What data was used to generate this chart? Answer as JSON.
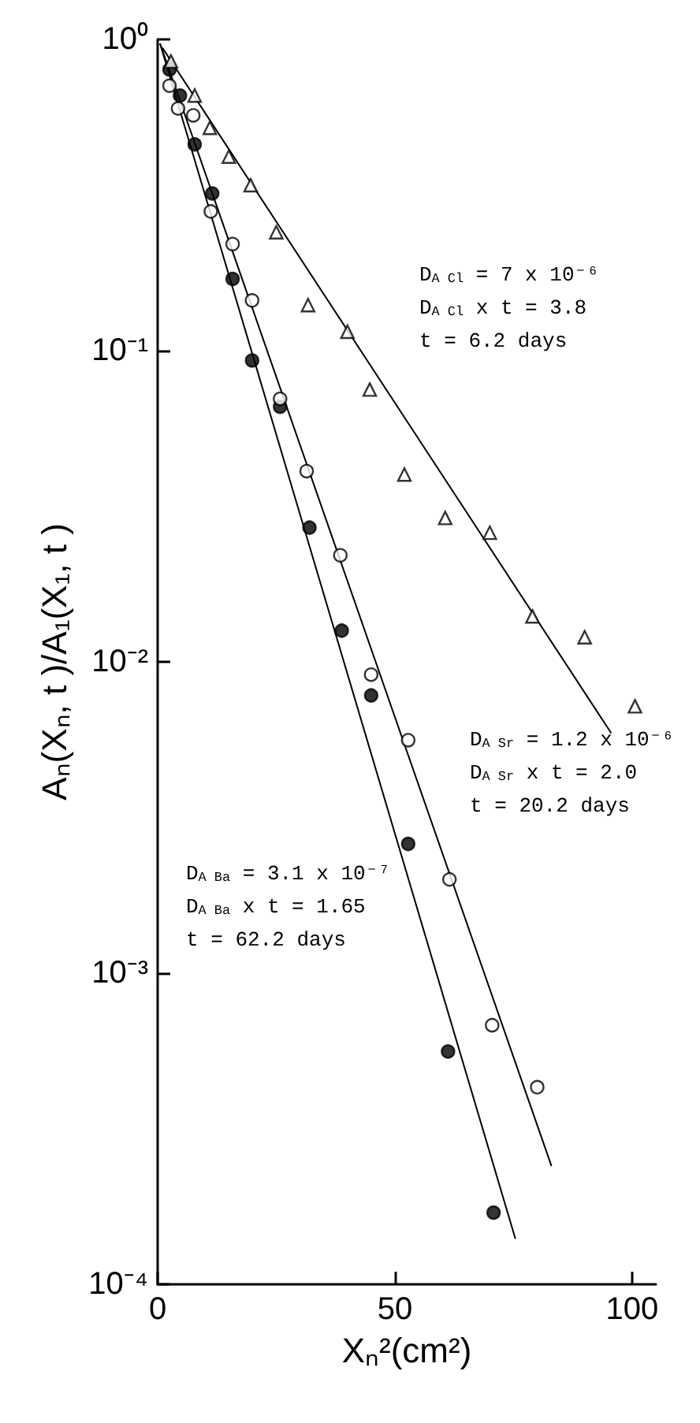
{
  "chart_data": {
    "type": "scatter",
    "xlabel": "Xₙ²(cm²)",
    "ylabel": "Aₙ(Xₙ, t )/A₁(X₁, t )",
    "xlim": [
      0,
      105
    ],
    "xticks": [
      0,
      50,
      100
    ],
    "ylim": [
      0.0001,
      1
    ],
    "log": "y",
    "yticks": [
      {
        "value": 0.0001,
        "label": "10⁻⁴"
      },
      {
        "value": 0.001,
        "label": "10⁻³"
      },
      {
        "value": 0.01,
        "label": "10⁻²"
      },
      {
        "value": 0.1,
        "label": "10⁻¹"
      },
      {
        "value": 1,
        "label": "10⁰"
      }
    ],
    "grid": false,
    "series": [
      {
        "marker": "triangle",
        "color": "#ffffff",
        "x": [
          2.8,
          7.8,
          11,
          15,
          19.6,
          25,
          31.7,
          40,
          44.7,
          52,
          60.6,
          70,
          79,
          90,
          100.6
        ],
        "values": [
          0.85,
          0.66,
          0.52,
          0.42,
          0.34,
          0.24,
          0.14,
          0.115,
          0.075,
          0.04,
          0.029,
          0.026,
          0.014,
          0.012,
          0.0072
        ]
      },
      {
        "marker": "circle",
        "color": "#ffffff",
        "x": [
          2.5,
          4.3,
          7.5,
          11.2,
          15.8,
          19.9,
          25.8,
          31.4,
          38.5,
          45,
          52.8,
          61.5,
          70.5,
          80
        ],
        "values": [
          0.71,
          0.6,
          0.57,
          0.28,
          0.22,
          0.145,
          0.07,
          0.041,
          0.022,
          0.0091,
          0.0056,
          0.002,
          0.00068,
          0.00043
        ]
      },
      {
        "marker": "circle",
        "color": "#000000",
        "x": [
          2.5,
          4.7,
          7.8,
          11.5,
          15.8,
          19.9,
          25.8,
          32,
          38.8,
          45,
          52.8,
          61.2,
          70.8
        ],
        "values": [
          0.8,
          0.66,
          0.46,
          0.32,
          0.17,
          0.093,
          0.066,
          0.027,
          0.0126,
          0.0078,
          0.0026,
          0.00056,
          0.00017
        ]
      },
      {
        "type": "line",
        "marker": "none",
        "line_style": "solid",
        "color": "#000000",
        "x": [
          1,
          95.6
        ],
        "values": [
          0.94,
          0.0059
        ]
      },
      {
        "type": "line",
        "marker": "none",
        "line_style": "solid",
        "color": "#000000",
        "x": [
          0.5,
          83
        ],
        "values": [
          0.97,
          0.00024
        ]
      },
      {
        "type": "line",
        "marker": "none",
        "line_style": "solid",
        "color": "#000000",
        "x": [
          0.5,
          75.4
        ],
        "values": [
          0.97,
          0.00014
        ]
      }
    ],
    "annotations": [
      "D$_{A Cl}$ = 7 x 10⁻⁶",
      "D$_{A Cl}$ x t = 3.8",
      "t = 6.2 days",
      "D$_{A Sr}$ = 1.2 x 10⁻⁶",
      "D$_{A Sr}$ x t = 2.0",
      "t = 20.2 days",
      "D$_{A Ba}$ = 3.1 x 10⁻⁷",
      "D$_{A Ba}$ x t = 1.65",
      "t = 62.2 days"
    ]
  }
}
